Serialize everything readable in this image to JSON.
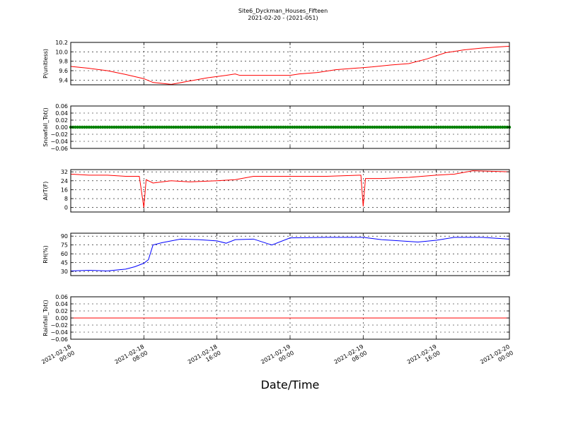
{
  "figure": {
    "title": "Site6_Dyckman_Houses_Fifteen",
    "subtitle": "2021-02-20 - (2021-051)",
    "xlabel": "Date/Time",
    "x_ticks": [
      [
        "2021-02-18",
        "00:00"
      ],
      [
        "2021-02-18",
        "08:00"
      ],
      [
        "2021-02-18",
        "16:00"
      ],
      [
        "2021-02-19",
        "00:00"
      ],
      [
        "2021-02-19",
        "08:00"
      ],
      [
        "2021-02-19",
        "16:00"
      ],
      [
        "2021-02-20",
        "00:00"
      ]
    ]
  },
  "chart_data": [
    {
      "type": "line",
      "ylabel": "P(unitless)",
      "color": "#ff0000",
      "ylim": [
        9.3,
        10.2
      ],
      "yticks": [
        "10.2",
        "10.0",
        "9.8",
        "9.6",
        "9.4"
      ],
      "ytick_values": [
        10.2,
        10.0,
        9.8,
        9.6,
        9.4
      ],
      "x": [
        "2021-02-18 00:00",
        "2021-02-18 02:00",
        "2021-02-18 04:00",
        "2021-02-18 06:00",
        "2021-02-18 08:00",
        "2021-02-18 09:00",
        "2021-02-18 11:00",
        "2021-02-18 13:00",
        "2021-02-18 15:00",
        "2021-02-18 17:00",
        "2021-02-18 18:00",
        "2021-02-18 18:30",
        "2021-02-19 00:00",
        "2021-02-19 01:00",
        "2021-02-19 03:00",
        "2021-02-19 05:00",
        "2021-02-19 07:00",
        "2021-02-19 09:00",
        "2021-02-19 11:00",
        "2021-02-19 13:00",
        "2021-02-19 15:00",
        "2021-02-19 17:00",
        "2021-02-19 19:00",
        "2021-02-19 21:00",
        "2021-02-20 00:00"
      ],
      "y": [
        9.69,
        9.65,
        9.6,
        9.52,
        9.43,
        9.35,
        9.31,
        9.38,
        9.45,
        9.5,
        9.53,
        9.5,
        9.5,
        9.53,
        9.56,
        9.62,
        9.65,
        9.68,
        9.72,
        9.75,
        9.85,
        9.98,
        10.04,
        10.08,
        10.12
      ]
    },
    {
      "type": "scatter",
      "ylabel": "Snowfall_Tot()",
      "color": "#008000",
      "ylim": [
        -0.06,
        0.06
      ],
      "yticks": [
        "0.06",
        "0.04",
        "0.02",
        "0.00",
        "−0.02",
        "−0.04",
        "−0.06"
      ],
      "ytick_values": [
        0.06,
        0.04,
        0.02,
        0.0,
        -0.02,
        -0.04,
        -0.06
      ],
      "x_range": [
        "2021-02-18 00:00",
        "2021-02-20 00:00"
      ],
      "interval_minutes": 15,
      "constant_value": 0.0
    },
    {
      "type": "line",
      "ylabel": "AirT(F)",
      "color": "#ff0000",
      "ylim": [
        -4,
        34
      ],
      "yticks": [
        "32",
        "24",
        "16",
        "8",
        "0"
      ],
      "ytick_values": [
        32,
        24,
        16,
        8,
        0
      ],
      "x": [
        "2021-02-18 00:00",
        "2021-02-18 02:00",
        "2021-02-18 04:00",
        "2021-02-18 06:00",
        "2021-02-18 07:30",
        "2021-02-18 08:00",
        "2021-02-18 08:15",
        "2021-02-18 09:00",
        "2021-02-18 11:00",
        "2021-02-18 13:00",
        "2021-02-18 16:00",
        "2021-02-18 18:00",
        "2021-02-18 20:00",
        "2021-02-19 00:00",
        "2021-02-19 04:00",
        "2021-02-19 07:45",
        "2021-02-19 08:00",
        "2021-02-19 08:15",
        "2021-02-19 10:00",
        "2021-02-19 13:00",
        "2021-02-19 16:00",
        "2021-02-19 18:00",
        "2021-02-19 20:00",
        "2021-02-20 00:00"
      ],
      "y": [
        30,
        29,
        29,
        28,
        28,
        0,
        25,
        22,
        24,
        23,
        24,
        25,
        28,
        28,
        28,
        29,
        1,
        26,
        26,
        27,
        29,
        30,
        33,
        32
      ]
    },
    {
      "type": "line",
      "ylabel": "RH(%)",
      "color": "#0000ff",
      "ylim": [
        23,
        95
      ],
      "yticks": [
        "90",
        "75",
        "60",
        "45",
        "30"
      ],
      "ytick_values": [
        90,
        75,
        60,
        45,
        30
      ],
      "x": [
        "2021-02-18 00:00",
        "2021-02-18 02:00",
        "2021-02-18 04:00",
        "2021-02-18 06:00",
        "2021-02-18 07:00",
        "2021-02-18 08:00",
        "2021-02-18 08:30",
        "2021-02-18 09:00",
        "2021-02-18 10:00",
        "2021-02-18 12:00",
        "2021-02-18 14:00",
        "2021-02-18 16:00",
        "2021-02-18 17:00",
        "2021-02-18 18:00",
        "2021-02-18 20:00",
        "2021-02-18 22:00",
        "2021-02-19 00:00",
        "2021-02-19 04:00",
        "2021-02-19 08:00",
        "2021-02-19 10:00",
        "2021-02-19 14:00",
        "2021-02-19 16:00",
        "2021-02-19 18:00",
        "2021-02-19 21:00",
        "2021-02-20 00:00"
      ],
      "y": [
        31,
        32,
        31,
        34,
        38,
        44,
        50,
        75,
        79,
        85,
        84,
        82,
        78,
        84,
        85,
        75,
        87,
        88,
        88,
        84,
        80,
        83,
        88,
        88,
        85
      ]
    },
    {
      "type": "line",
      "ylabel": "Rainfall_Tot()",
      "color": "#ff0000",
      "ylim": [
        -0.06,
        0.06
      ],
      "yticks": [
        "0.06",
        "0.04",
        "0.02",
        "0.00",
        "−0.02",
        "−0.04",
        "−0.06"
      ],
      "ytick_values": [
        0.06,
        0.04,
        0.02,
        0.0,
        -0.02,
        -0.04,
        -0.06
      ],
      "x": [
        "2021-02-18 00:00",
        "2021-02-20 00:00"
      ],
      "y": [
        0.0,
        0.0
      ]
    }
  ]
}
